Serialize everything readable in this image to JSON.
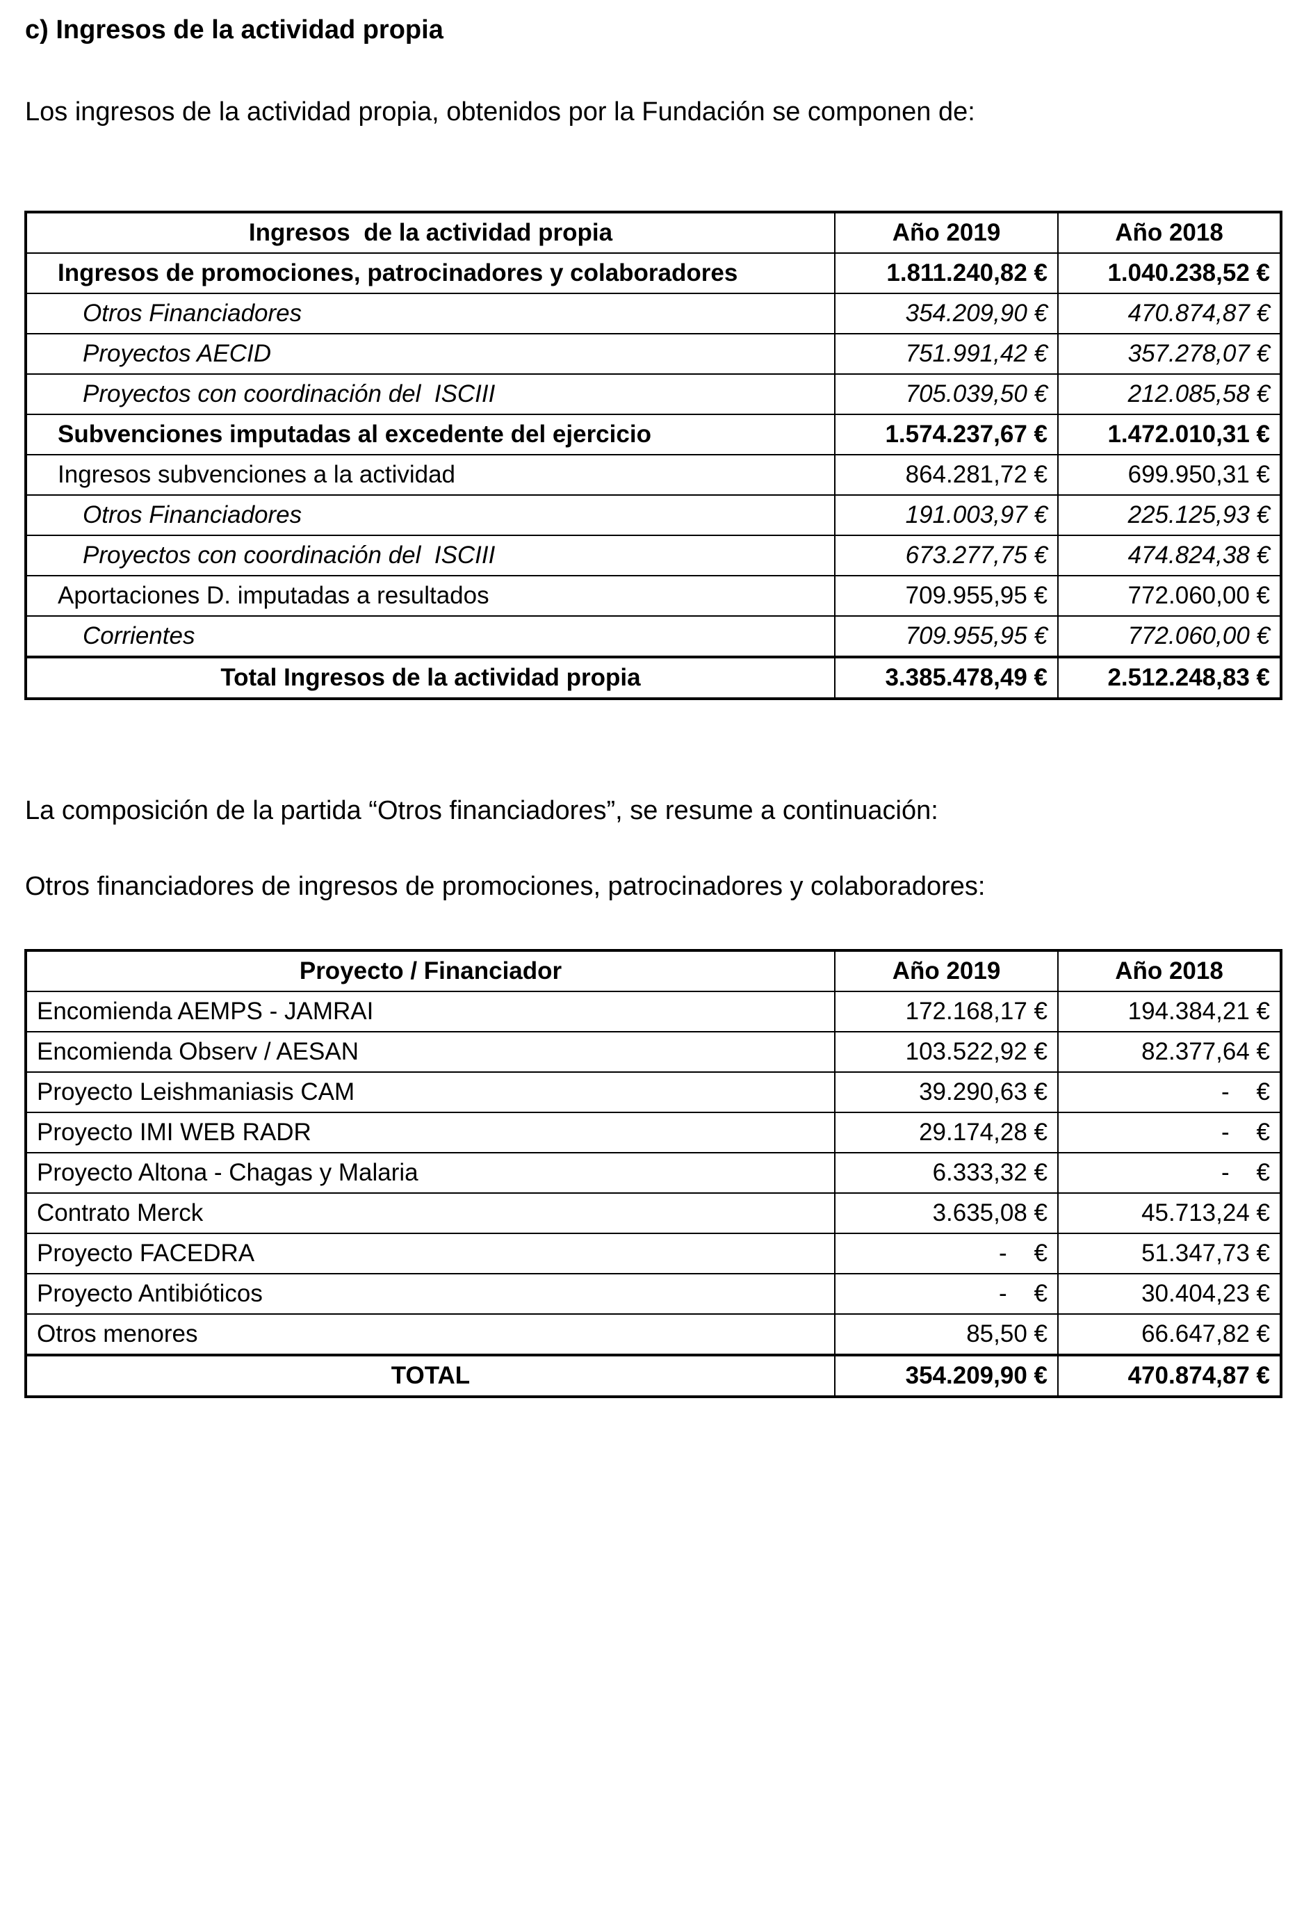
{
  "heading": "c) Ingresos de la actividad propia",
  "intro": "Los ingresos de la actividad propia, obtenidos por la Fundación se componen de:",
  "table1": {
    "header": [
      "Ingresos  de la actividad propia",
      "Año 2019",
      "Año 2018"
    ],
    "rows": [
      [
        "Ingresos de promociones, patrocinadores y colaboradores",
        "1.811.240,82 €",
        "1.040.238,52 €"
      ],
      [
        "Otros Financiadores",
        "354.209,90 €",
        "470.874,87 €"
      ],
      [
        "Proyectos AECID",
        "751.991,42 €",
        "357.278,07 €"
      ],
      [
        "Proyectos con coordinación del  ISCIII",
        "705.039,50 €",
        "212.085,58 €"
      ],
      [
        "Subvenciones imputadas al excedente del ejercicio",
        "1.574.237,67 €",
        "1.472.010,31 €"
      ],
      [
        "Ingresos subvenciones a la actividad",
        "864.281,72 €",
        "699.950,31 €"
      ],
      [
        "Otros Financiadores",
        "191.003,97 €",
        "225.125,93 €"
      ],
      [
        "Proyectos con coordinación del  ISCIII",
        "673.277,75 €",
        "474.824,38 €"
      ],
      [
        "Aportaciones D. imputadas a resultados",
        "709.955,95 €",
        "772.060,00 €"
      ],
      [
        "Corrientes",
        "709.955,95 €",
        "772.060,00 €"
      ],
      [
        "Total Ingresos de la actividad propia",
        "3.385.478,49 €",
        "2.512.248,83 €"
      ]
    ]
  },
  "paragraph2": "La composición de la partida “Otros financiadores”, se resume a continuación:",
  "paragraph3": "Otros financiadores de ingresos de promociones, patrocinadores y colaboradores:",
  "table2": {
    "header": [
      "Proyecto / Financiador",
      "Año 2019",
      "Año 2018"
    ],
    "rows": [
      [
        "Encomienda AEMPS - JAMRAI",
        "172.168,17 €",
        "194.384,21 €"
      ],
      [
        "Encomienda Observ / AESAN",
        "103.522,92 €",
        "82.377,64 €"
      ],
      [
        "Proyecto Leishmaniasis CAM",
        "39.290,63 €",
        "-    €"
      ],
      [
        "Proyecto IMI WEB RADR",
        "29.174,28 €",
        "-    €"
      ],
      [
        "Proyecto Altona - Chagas y Malaria",
        "6.333,32 €",
        "-    €"
      ],
      [
        "Contrato Merck",
        "3.635,08 €",
        "45.713,24 €"
      ],
      [
        "Proyecto FACEDRA",
        "-    €",
        "51.347,73 €"
      ],
      [
        "Proyecto Antibióticos",
        "-    €",
        "30.404,23 €"
      ],
      [
        "Otros menores",
        "85,50 €",
        "66.647,82 €"
      ],
      [
        "TOTAL",
        "354.209,90 €",
        "470.874,87 €"
      ]
    ]
  }
}
